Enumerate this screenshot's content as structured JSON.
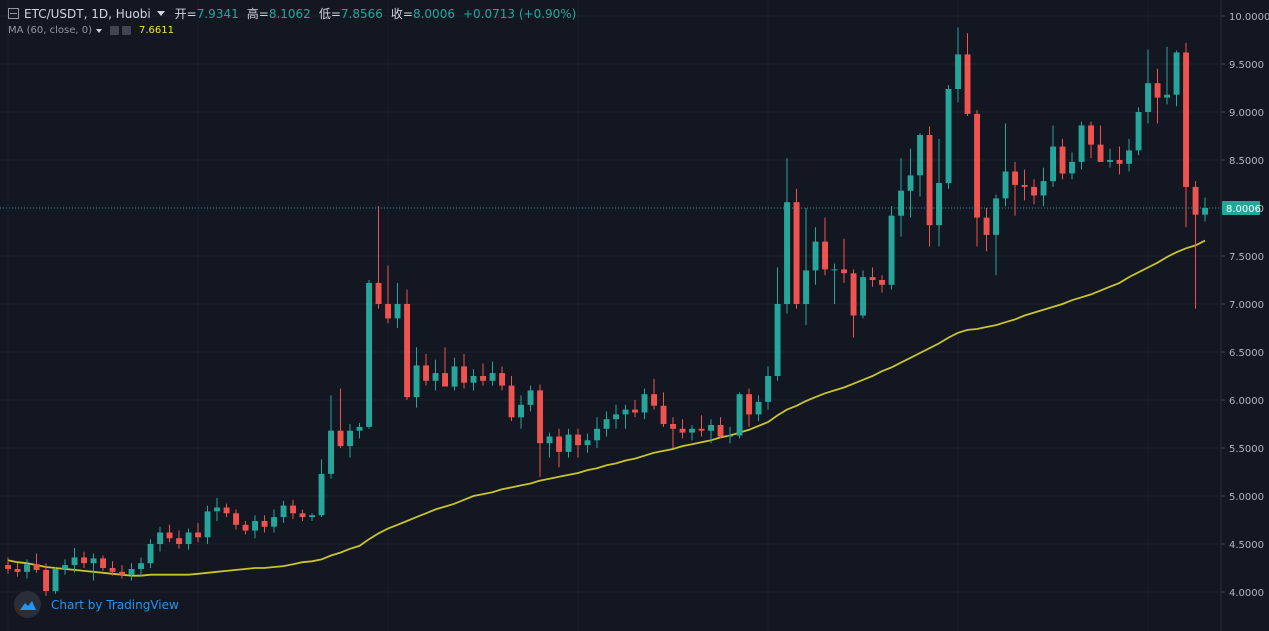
{
  "legend": {
    "symbol": "ETC/USDT, 1D, Huobi",
    "open_label": "开",
    "open": "7.9341",
    "high_label": "高",
    "high": "8.1062",
    "low_label": "低",
    "low": "7.8566",
    "close_label": "收",
    "close": "8.0006",
    "change": "+0.0713 (+0.90%)"
  },
  "study": {
    "label": "MA (60, close, 0)",
    "value": "7.6611"
  },
  "branding": "Chart by TradingView",
  "colors": {
    "background": "#131722",
    "up": "#26a69a",
    "down": "#ef5350",
    "ma": "#c9c42e",
    "grid": "#1e2230",
    "axis_text": "#b2b5be"
  },
  "chart_data": {
    "type": "candlestick",
    "ylim": [
      3.75,
      10.1
    ],
    "y_ticks": [
      "10.0000",
      "9.5000",
      "9.0000",
      "8.5000",
      "8.0000",
      "7.5000",
      "7.0000",
      "6.5000",
      "6.0000",
      "5.5000",
      "5.0000",
      "4.5000",
      "4.0000"
    ],
    "last_price": "8.0006",
    "candles": [
      [
        4.28,
        4.36,
        4.19,
        4.24
      ],
      [
        4.24,
        4.3,
        4.16,
        4.21
      ],
      [
        4.21,
        4.34,
        4.14,
        4.29
      ],
      [
        4.29,
        4.4,
        4.2,
        4.23
      ],
      [
        4.23,
        4.3,
        3.96,
        4.01
      ],
      [
        4.01,
        4.26,
        3.98,
        4.24
      ],
      [
        4.24,
        4.34,
        4.18,
        4.28
      ],
      [
        4.28,
        4.46,
        4.2,
        4.36
      ],
      [
        4.36,
        4.42,
        4.25,
        4.3
      ],
      [
        4.3,
        4.4,
        4.12,
        4.35
      ],
      [
        4.35,
        4.38,
        4.22,
        4.25
      ],
      [
        4.25,
        4.32,
        4.17,
        4.21
      ],
      [
        4.21,
        4.28,
        4.14,
        4.18
      ],
      [
        4.18,
        4.3,
        4.12,
        4.24
      ],
      [
        4.24,
        4.36,
        4.16,
        4.3
      ],
      [
        4.3,
        4.55,
        4.25,
        4.5
      ],
      [
        4.5,
        4.68,
        4.42,
        4.62
      ],
      [
        4.62,
        4.7,
        4.52,
        4.56
      ],
      [
        4.56,
        4.64,
        4.45,
        4.5
      ],
      [
        4.5,
        4.66,
        4.44,
        4.62
      ],
      [
        4.62,
        4.72,
        4.52,
        4.57
      ],
      [
        4.57,
        4.9,
        4.5,
        4.84
      ],
      [
        4.84,
        4.98,
        4.74,
        4.88
      ],
      [
        4.88,
        4.92,
        4.78,
        4.82
      ],
      [
        4.82,
        4.86,
        4.65,
        4.7
      ],
      [
        4.7,
        4.74,
        4.6,
        4.64
      ],
      [
        4.64,
        4.8,
        4.56,
        4.74
      ],
      [
        4.74,
        4.8,
        4.62,
        4.68
      ],
      [
        4.68,
        4.86,
        4.62,
        4.78
      ],
      [
        4.78,
        4.95,
        4.72,
        4.9
      ],
      [
        4.9,
        4.96,
        4.76,
        4.82
      ],
      [
        4.82,
        4.86,
        4.74,
        4.78
      ],
      [
        4.78,
        4.82,
        4.74,
        4.8
      ],
      [
        4.8,
        5.38,
        4.78,
        5.23
      ],
      [
        5.23,
        6.05,
        5.18,
        5.68
      ],
      [
        5.68,
        6.12,
        5.5,
        5.52
      ],
      [
        5.52,
        5.75,
        5.4,
        5.68
      ],
      [
        5.68,
        5.76,
        5.6,
        5.72
      ],
      [
        5.72,
        7.25,
        5.7,
        7.22
      ],
      [
        7.22,
        8.02,
        6.95,
        7.0
      ],
      [
        7.0,
        7.4,
        6.8,
        6.85
      ],
      [
        6.85,
        7.22,
        6.75,
        7.0
      ],
      [
        7.0,
        7.15,
        6.0,
        6.03
      ],
      [
        6.03,
        6.55,
        5.92,
        6.36
      ],
      [
        6.36,
        6.48,
        6.15,
        6.2
      ],
      [
        6.2,
        6.42,
        6.1,
        6.28
      ],
      [
        6.28,
        6.55,
        6.15,
        6.14
      ],
      [
        6.14,
        6.44,
        6.1,
        6.35
      ],
      [
        6.35,
        6.48,
        6.12,
        6.18
      ],
      [
        6.18,
        6.32,
        6.1,
        6.25
      ],
      [
        6.25,
        6.38,
        6.15,
        6.2
      ],
      [
        6.2,
        6.4,
        6.15,
        6.28
      ],
      [
        6.28,
        6.35,
        6.1,
        6.15
      ],
      [
        6.15,
        6.25,
        5.78,
        5.82
      ],
      [
        5.82,
        6.05,
        5.7,
        5.95
      ],
      [
        5.95,
        6.15,
        5.88,
        6.1
      ],
      [
        6.1,
        6.16,
        5.2,
        5.55
      ],
      [
        5.55,
        5.66,
        5.4,
        5.62
      ],
      [
        5.62,
        5.7,
        5.3,
        5.46
      ],
      [
        5.46,
        5.7,
        5.4,
        5.64
      ],
      [
        5.64,
        5.7,
        5.4,
        5.53
      ],
      [
        5.53,
        5.65,
        5.45,
        5.58
      ],
      [
        5.58,
        5.82,
        5.5,
        5.7
      ],
      [
        5.7,
        5.88,
        5.62,
        5.8
      ],
      [
        5.8,
        5.95,
        5.7,
        5.85
      ],
      [
        5.85,
        5.95,
        5.7,
        5.9
      ],
      [
        5.9,
        6.0,
        5.82,
        5.87
      ],
      [
        5.87,
        6.12,
        5.8,
        6.06
      ],
      [
        6.06,
        6.22,
        5.9,
        5.94
      ],
      [
        5.94,
        6.08,
        5.72,
        5.75
      ],
      [
        5.75,
        5.82,
        5.5,
        5.7
      ],
      [
        5.7,
        5.8,
        5.6,
        5.66
      ],
      [
        5.66,
        5.74,
        5.58,
        5.7
      ],
      [
        5.7,
        5.84,
        5.62,
        5.68
      ],
      [
        5.68,
        5.8,
        5.55,
        5.74
      ],
      [
        5.74,
        5.82,
        5.6,
        5.62
      ],
      [
        5.62,
        5.72,
        5.55,
        5.63
      ],
      [
        5.63,
        6.08,
        5.6,
        6.06
      ],
      [
        6.06,
        6.12,
        5.72,
        5.85
      ],
      [
        5.85,
        6.05,
        5.78,
        5.98
      ],
      [
        5.98,
        6.35,
        5.9,
        6.25
      ],
      [
        6.25,
        7.38,
        6.2,
        7.0
      ],
      [
        7.0,
        8.52,
        6.9,
        8.06
      ],
      [
        8.06,
        8.2,
        6.95,
        7.0
      ],
      [
        7.0,
        8.0,
        6.78,
        7.35
      ],
      [
        7.35,
        7.8,
        7.2,
        7.65
      ],
      [
        7.65,
        7.9,
        7.3,
        7.36
      ],
      [
        7.36,
        7.42,
        7.0,
        7.36
      ],
      [
        7.36,
        7.68,
        7.22,
        7.32
      ],
      [
        7.32,
        7.36,
        6.65,
        6.88
      ],
      [
        6.88,
        7.35,
        6.85,
        7.28
      ],
      [
        7.28,
        7.38,
        7.18,
        7.25
      ],
      [
        7.25,
        7.3,
        7.12,
        7.2
      ],
      [
        7.2,
        8.02,
        7.15,
        7.92
      ],
      [
        7.92,
        8.52,
        7.7,
        8.18
      ],
      [
        8.18,
        8.62,
        7.9,
        8.34
      ],
      [
        8.34,
        8.78,
        8.12,
        8.76
      ],
      [
        8.76,
        8.85,
        7.6,
        7.82
      ],
      [
        7.82,
        8.72,
        7.6,
        8.26
      ],
      [
        8.26,
        9.28,
        8.2,
        9.24
      ],
      [
        9.24,
        9.88,
        9.1,
        9.6
      ],
      [
        9.6,
        9.82,
        8.96,
        8.98
      ],
      [
        8.98,
        9.02,
        7.6,
        7.9
      ],
      [
        7.9,
        8.0,
        7.55,
        7.72
      ],
      [
        7.72,
        8.14,
        7.3,
        8.1
      ],
      [
        8.1,
        8.88,
        8.02,
        8.38
      ],
      [
        8.38,
        8.48,
        7.92,
        8.24
      ],
      [
        8.24,
        8.4,
        8.08,
        8.22
      ],
      [
        8.22,
        8.3,
        8.04,
        8.13
      ],
      [
        8.13,
        8.42,
        8.02,
        8.28
      ],
      [
        8.28,
        8.86,
        8.22,
        8.64
      ],
      [
        8.64,
        8.72,
        8.3,
        8.36
      ],
      [
        8.36,
        8.58,
        8.3,
        8.48
      ],
      [
        8.48,
        8.9,
        8.4,
        8.86
      ],
      [
        8.86,
        8.9,
        8.52,
        8.66
      ],
      [
        8.66,
        8.86,
        8.52,
        8.48
      ],
      [
        8.48,
        8.62,
        8.42,
        8.5
      ],
      [
        8.5,
        8.64,
        8.35,
        8.46
      ],
      [
        8.46,
        8.72,
        8.38,
        8.6
      ],
      [
        8.6,
        9.05,
        8.55,
        9.0
      ],
      [
        9.0,
        9.65,
        8.88,
        9.3
      ],
      [
        9.3,
        9.45,
        8.88,
        9.15
      ],
      [
        9.15,
        9.68,
        9.08,
        9.18
      ],
      [
        9.18,
        9.64,
        9.06,
        9.62
      ],
      [
        9.62,
        9.72,
        7.8,
        8.22
      ],
      [
        8.22,
        8.28,
        6.95,
        7.93
      ],
      [
        7.93,
        8.11,
        7.86,
        8.0
      ]
    ],
    "ma": [
      4.33,
      4.31,
      4.3,
      4.28,
      4.26,
      4.25,
      4.24,
      4.23,
      4.22,
      4.21,
      4.2,
      4.19,
      4.18,
      4.17,
      4.17,
      4.18,
      4.18,
      4.18,
      4.18,
      4.18,
      4.19,
      4.2,
      4.21,
      4.22,
      4.23,
      4.24,
      4.25,
      4.25,
      4.26,
      4.27,
      4.29,
      4.31,
      4.32,
      4.34,
      4.38,
      4.41,
      4.45,
      4.48,
      4.55,
      4.61,
      4.66,
      4.7,
      4.74,
      4.78,
      4.82,
      4.86,
      4.89,
      4.92,
      4.96,
      5.0,
      5.02,
      5.04,
      5.07,
      5.09,
      5.11,
      5.13,
      5.16,
      5.18,
      5.2,
      5.22,
      5.24,
      5.27,
      5.29,
      5.32,
      5.34,
      5.37,
      5.39,
      5.42,
      5.45,
      5.47,
      5.49,
      5.52,
      5.54,
      5.56,
      5.58,
      5.61,
      5.63,
      5.66,
      5.69,
      5.73,
      5.77,
      5.84,
      5.9,
      5.94,
      5.99,
      6.03,
      6.07,
      6.1,
      6.13,
      6.17,
      6.21,
      6.25,
      6.3,
      6.34,
      6.39,
      6.44,
      6.49,
      6.54,
      6.59,
      6.65,
      6.7,
      6.73,
      6.74,
      6.76,
      6.78,
      6.81,
      6.84,
      6.88,
      6.91,
      6.94,
      6.97,
      7.0,
      7.04,
      7.07,
      7.1,
      7.14,
      7.18,
      7.22,
      7.28,
      7.33,
      7.38,
      7.43,
      7.49,
      7.54,
      7.58,
      7.61,
      7.66
    ]
  }
}
